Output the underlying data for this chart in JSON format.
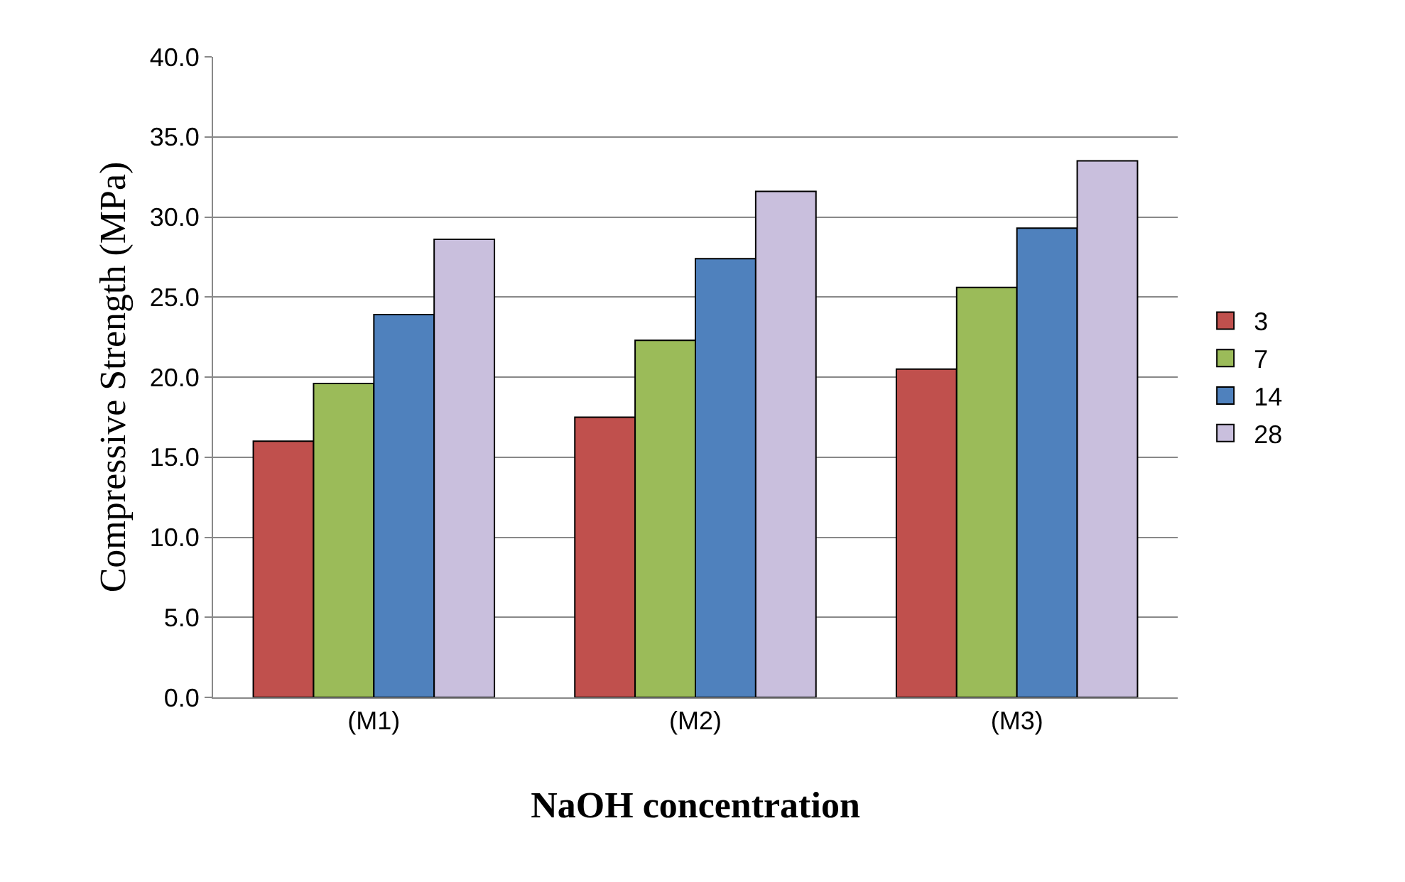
{
  "chart_data": {
    "type": "bar",
    "xlabel": "NaOH concentration",
    "ylabel": "Compressive Strength (MPa)",
    "categories": [
      "(M1)",
      "(M2)",
      "(M3)"
    ],
    "series": [
      {
        "name": "3",
        "color": "#c0504d",
        "values": [
          16.0,
          17.5,
          20.5
        ]
      },
      {
        "name": "7",
        "color": "#9bbb59",
        "values": [
          19.6,
          22.3,
          25.6
        ]
      },
      {
        "name": "14",
        "color": "#4f81bd",
        "values": [
          23.9,
          27.4,
          29.3
        ]
      },
      {
        "name": "28",
        "color": "#c9bfdd",
        "values": [
          28.6,
          31.6,
          33.5
        ]
      }
    ],
    "ylim": [
      0,
      40
    ],
    "yticks": [
      {
        "value": 0,
        "label": "0.0"
      },
      {
        "value": 5,
        "label": "5.0"
      },
      {
        "value": 10,
        "label": "10.0"
      },
      {
        "value": 15,
        "label": "15.0"
      },
      {
        "value": 20,
        "label": "20.0"
      },
      {
        "value": 25,
        "label": "25.0"
      },
      {
        "value": 30,
        "label": "30.0"
      },
      {
        "value": 35,
        "label": "35.0"
      },
      {
        "value": 40,
        "label": "40.0"
      }
    ],
    "grid": "y",
    "legend": "right"
  }
}
